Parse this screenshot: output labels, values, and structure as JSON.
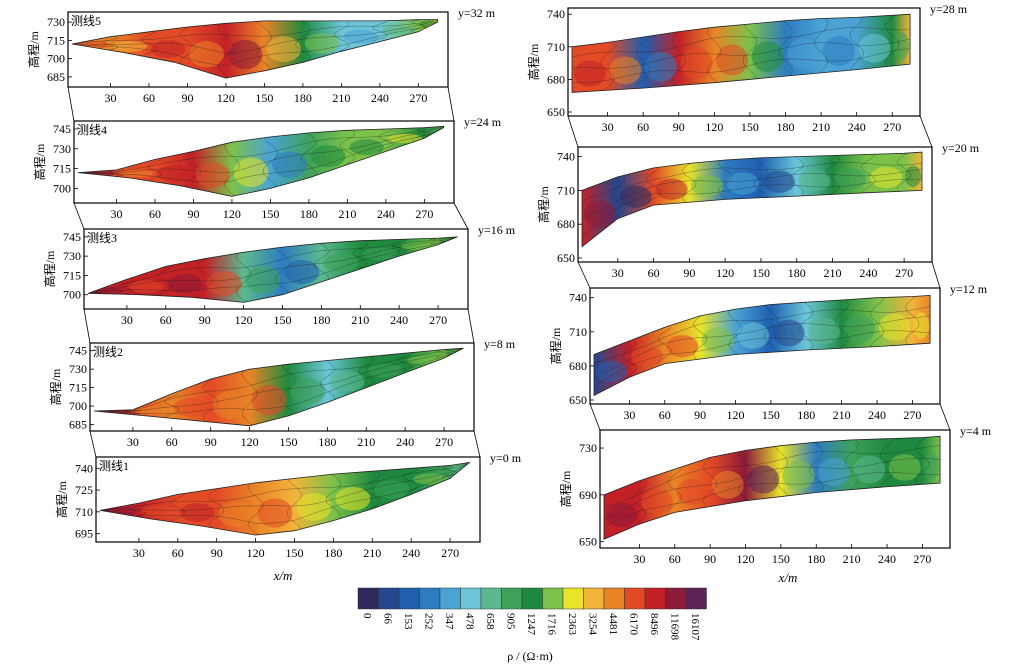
{
  "colorbar": {
    "ticks": [
      "0",
      "66",
      "153",
      "252",
      "347",
      "478",
      "658",
      "905",
      "1247",
      "1716",
      "2363",
      "3254",
      "4481",
      "6170",
      "8496",
      "11698",
      "16107"
    ],
    "colors": [
      "#2e2a5e",
      "#24478f",
      "#1f5fb0",
      "#2e7cc0",
      "#4aa3d4",
      "#6cc6d8",
      "#5cb98f",
      "#3fa15a",
      "#1f8a3f",
      "#7cc24a",
      "#e7e42a",
      "#f2b43a",
      "#e98427",
      "#e34a26",
      "#c42127",
      "#8c1a3a",
      "#5d2358"
    ],
    "label": "ρ / (Ω·m)"
  },
  "chart_data": [
    {
      "type": "heatmap",
      "name": "测线5",
      "y_label": "y=32 m",
      "ylabel": "高程/m",
      "x_ticks": [
        "30",
        "60",
        "90",
        "120",
        "150",
        "180",
        "210",
        "240",
        "270"
      ],
      "y_ticks": [
        "730",
        "715",
        "700",
        "685"
      ],
      "ylim": [
        680,
        735
      ],
      "xlim": [
        0,
        290
      ],
      "top": [
        [
          0,
          712
        ],
        [
          30,
          718
        ],
        [
          60,
          722
        ],
        [
          90,
          726
        ],
        [
          120,
          729
        ],
        [
          150,
          731
        ],
        [
          180,
          731
        ],
        [
          210,
          731
        ],
        [
          240,
          731
        ],
        [
          270,
          732
        ],
        [
          285,
          732
        ]
      ],
      "bottom": [
        [
          0,
          712
        ],
        [
          40,
          705
        ],
        [
          80,
          697
        ],
        [
          120,
          684
        ],
        [
          150,
          690
        ],
        [
          180,
          697
        ],
        [
          210,
          706
        ],
        [
          240,
          714
        ],
        [
          270,
          722
        ],
        [
          285,
          730
        ]
      ],
      "columns": [
        [
          0,
          12
        ],
        [
          30,
          12
        ],
        [
          60,
          13
        ],
        [
          90,
          13
        ],
        [
          120,
          14
        ],
        [
          150,
          12
        ],
        [
          180,
          8
        ],
        [
          210,
          5
        ],
        [
          240,
          5
        ],
        [
          270,
          9
        ],
        [
          285,
          10
        ]
      ]
    },
    {
      "type": "heatmap",
      "name": "测线4",
      "y_label": "y=24 m",
      "ylabel": "高程/m",
      "x_ticks": [
        "30",
        "60",
        "90",
        "120",
        "150",
        "180",
        "210",
        "240",
        "270"
      ],
      "y_ticks": [
        "745",
        "730",
        "715",
        "700"
      ],
      "ylim": [
        692,
        748
      ],
      "xlim": [
        0,
        290
      ],
      "top": [
        [
          0,
          712
        ],
        [
          30,
          714
        ],
        [
          60,
          722
        ],
        [
          90,
          728
        ],
        [
          120,
          735
        ],
        [
          150,
          739
        ],
        [
          180,
          742
        ],
        [
          210,
          744
        ],
        [
          240,
          745
        ],
        [
          270,
          746
        ],
        [
          285,
          747
        ]
      ],
      "bottom": [
        [
          0,
          712
        ],
        [
          40,
          708
        ],
        [
          80,
          702
        ],
        [
          120,
          694
        ],
        [
          150,
          700
        ],
        [
          180,
          708
        ],
        [
          210,
          718
        ],
        [
          240,
          728
        ],
        [
          270,
          738
        ],
        [
          285,
          746
        ]
      ],
      "columns": [
        [
          0,
          14
        ],
        [
          30,
          13
        ],
        [
          60,
          13
        ],
        [
          90,
          14
        ],
        [
          120,
          9
        ],
        [
          150,
          4
        ],
        [
          180,
          7
        ],
        [
          210,
          9
        ],
        [
          240,
          9
        ],
        [
          270,
          8
        ],
        [
          285,
          9
        ]
      ]
    },
    {
      "type": "heatmap",
      "name": "测线3",
      "y_label": "y=16 m",
      "ylabel": "高程/m",
      "x_ticks": [
        "30",
        "60",
        "90",
        "120",
        "150",
        "180",
        "210",
        "240",
        "270"
      ],
      "y_ticks": [
        "745",
        "730",
        "715",
        "700"
      ],
      "ylim": [
        692,
        748
      ],
      "xlim": [
        0,
        290
      ],
      "top": [
        [
          0,
          701
        ],
        [
          30,
          712
        ],
        [
          60,
          722
        ],
        [
          90,
          728
        ],
        [
          120,
          733
        ],
        [
          150,
          737
        ],
        [
          180,
          740
        ],
        [
          210,
          742
        ],
        [
          240,
          743
        ],
        [
          270,
          744
        ],
        [
          285,
          745
        ]
      ],
      "bottom": [
        [
          0,
          701
        ],
        [
          40,
          700
        ],
        [
          80,
          698
        ],
        [
          120,
          694
        ],
        [
          150,
          700
        ],
        [
          180,
          710
        ],
        [
          210,
          720
        ],
        [
          240,
          730
        ],
        [
          270,
          739
        ],
        [
          285,
          745
        ]
      ],
      "columns": [
        [
          0,
          14
        ],
        [
          30,
          14
        ],
        [
          60,
          14
        ],
        [
          90,
          14
        ],
        [
          120,
          6
        ],
        [
          150,
          3
        ],
        [
          180,
          6
        ],
        [
          210,
          8
        ],
        [
          240,
          8
        ],
        [
          270,
          9
        ],
        [
          285,
          9
        ]
      ]
    },
    {
      "type": "heatmap",
      "name": "测线2",
      "y_label": "y=8 m",
      "ylabel": "高程/m",
      "x_ticks": [
        "30",
        "60",
        "90",
        "120",
        "150",
        "180",
        "210",
        "240",
        "270"
      ],
      "y_ticks": [
        "745",
        "730",
        "715",
        "700",
        "685"
      ],
      "ylim": [
        683,
        748
      ],
      "xlim": [
        0,
        290
      ],
      "top": [
        [
          0,
          696
        ],
        [
          30,
          697
        ],
        [
          60,
          710
        ],
        [
          90,
          722
        ],
        [
          120,
          730
        ],
        [
          150,
          734
        ],
        [
          180,
          737
        ],
        [
          210,
          740
        ],
        [
          240,
          743
        ],
        [
          270,
          746
        ],
        [
          285,
          747
        ]
      ],
      "bottom": [
        [
          0,
          696
        ],
        [
          40,
          692
        ],
        [
          80,
          688
        ],
        [
          120,
          684
        ],
        [
          150,
          692
        ],
        [
          180,
          703
        ],
        [
          210,
          715
        ],
        [
          240,
          727
        ],
        [
          270,
          739
        ],
        [
          285,
          747
        ]
      ],
      "columns": [
        [
          0,
          14
        ],
        [
          30,
          13
        ],
        [
          60,
          12
        ],
        [
          90,
          13
        ],
        [
          120,
          12
        ],
        [
          150,
          8
        ],
        [
          180,
          5
        ],
        [
          210,
          8
        ],
        [
          240,
          8
        ],
        [
          270,
          9
        ],
        [
          285,
          9
        ]
      ]
    },
    {
      "type": "heatmap",
      "name": "测线1",
      "y_label": "y=0 m",
      "ylabel": "高程/m",
      "x_ticks": [
        "30",
        "60",
        "90",
        "120",
        "150",
        "180",
        "210",
        "240",
        "270"
      ],
      "y_ticks": [
        "740",
        "725",
        "710",
        "695"
      ],
      "ylim": [
        692,
        745
      ],
      "xlim": [
        0,
        290
      ],
      "top": [
        [
          0,
          711
        ],
        [
          30,
          716
        ],
        [
          60,
          722
        ],
        [
          90,
          726
        ],
        [
          120,
          730
        ],
        [
          150,
          733
        ],
        [
          180,
          736
        ],
        [
          210,
          738
        ],
        [
          240,
          740
        ],
        [
          270,
          742
        ],
        [
          285,
          744
        ]
      ],
      "bottom": [
        [
          0,
          711
        ],
        [
          40,
          705
        ],
        [
          80,
          700
        ],
        [
          120,
          694
        ],
        [
          150,
          697
        ],
        [
          180,
          704
        ],
        [
          210,
          712
        ],
        [
          240,
          722
        ],
        [
          270,
          733
        ],
        [
          285,
          744
        ]
      ],
      "columns": [
        [
          0,
          14
        ],
        [
          30,
          14
        ],
        [
          60,
          13
        ],
        [
          90,
          13
        ],
        [
          120,
          12
        ],
        [
          150,
          11
        ],
        [
          180,
          9
        ],
        [
          210,
          8
        ],
        [
          240,
          8
        ],
        [
          270,
          7
        ],
        [
          285,
          6
        ]
      ]
    },
    {
      "type": "heatmap",
      "name": "",
      "y_label": "y=28 m",
      "ylabel": "高程/m",
      "x_ticks": [
        "30",
        "60",
        "90",
        "120",
        "150",
        "180",
        "210",
        "240",
        "270"
      ],
      "y_ticks": [
        "740",
        "710",
        "680",
        "650"
      ],
      "ylim": [
        650,
        742
      ],
      "xlim": [
        0,
        290
      ],
      "top": [
        [
          0,
          710
        ],
        [
          30,
          714
        ],
        [
          60,
          719
        ],
        [
          90,
          724
        ],
        [
          120,
          728
        ],
        [
          150,
          731
        ],
        [
          180,
          734
        ],
        [
          210,
          736
        ],
        [
          240,
          737
        ],
        [
          270,
          739
        ],
        [
          285,
          740
        ]
      ],
      "bottom": [
        [
          0,
          668
        ],
        [
          60,
          672
        ],
        [
          120,
          677
        ],
        [
          180,
          683
        ],
        [
          240,
          689
        ],
        [
          285,
          694
        ]
      ],
      "columns": [
        [
          0,
          13
        ],
        [
          30,
          13
        ],
        [
          60,
          2
        ],
        [
          90,
          14
        ],
        [
          120,
          12
        ],
        [
          150,
          9
        ],
        [
          180,
          3
        ],
        [
          210,
          4
        ],
        [
          240,
          4
        ],
        [
          270,
          8
        ],
        [
          285,
          11
        ]
      ]
    },
    {
      "type": "heatmap",
      "name": "",
      "y_label": "y=20 m",
      "ylabel": "高程/m",
      "x_ticks": [
        "30",
        "60",
        "90",
        "120",
        "150",
        "180",
        "210",
        "240",
        "270"
      ],
      "y_ticks": [
        "740",
        "710",
        "680",
        "650"
      ],
      "ylim": [
        650,
        745
      ],
      "xlim": [
        0,
        290
      ],
      "top": [
        [
          0,
          710
        ],
        [
          30,
          722
        ],
        [
          60,
          730
        ],
        [
          90,
          734
        ],
        [
          120,
          737
        ],
        [
          150,
          739
        ],
        [
          180,
          740
        ],
        [
          210,
          741
        ],
        [
          240,
          742
        ],
        [
          270,
          743
        ],
        [
          285,
          744
        ]
      ],
      "bottom": [
        [
          0,
          660
        ],
        [
          30,
          685
        ],
        [
          60,
          697
        ],
        [
          120,
          702
        ],
        [
          180,
          705
        ],
        [
          240,
          708
        ],
        [
          285,
          710
        ]
      ],
      "columns": [
        [
          0,
          14
        ],
        [
          30,
          1
        ],
        [
          60,
          13
        ],
        [
          90,
          10
        ],
        [
          120,
          3
        ],
        [
          150,
          2
        ],
        [
          180,
          5
        ],
        [
          210,
          8
        ],
        [
          240,
          9
        ],
        [
          270,
          9
        ],
        [
          285,
          11
        ]
      ]
    },
    {
      "type": "heatmap",
      "name": "",
      "y_label": "y=12 m",
      "ylabel": "高程/m",
      "x_ticks": [
        "30",
        "60",
        "90",
        "120",
        "150",
        "180",
        "210",
        "240",
        "270"
      ],
      "y_ticks": [
        "740",
        "710",
        "680",
        "650"
      ],
      "ylim": [
        650,
        745
      ],
      "xlim": [
        0,
        290
      ],
      "top": [
        [
          0,
          690
        ],
        [
          30,
          702
        ],
        [
          60,
          714
        ],
        [
          90,
          724
        ],
        [
          120,
          730
        ],
        [
          150,
          734
        ],
        [
          180,
          736
        ],
        [
          210,
          738
        ],
        [
          240,
          740
        ],
        [
          270,
          741
        ],
        [
          285,
          742
        ]
      ],
      "bottom": [
        [
          0,
          654
        ],
        [
          30,
          670
        ],
        [
          60,
          682
        ],
        [
          120,
          690
        ],
        [
          180,
          694
        ],
        [
          240,
          697
        ],
        [
          285,
          700
        ]
      ],
      "columns": [
        [
          0,
          1
        ],
        [
          30,
          14
        ],
        [
          60,
          12
        ],
        [
          90,
          10
        ],
        [
          120,
          4
        ],
        [
          150,
          2
        ],
        [
          180,
          5
        ],
        [
          210,
          8
        ],
        [
          240,
          9
        ],
        [
          270,
          11
        ],
        [
          285,
          12
        ]
      ]
    },
    {
      "type": "heatmap",
      "name": "",
      "y_label": "y=4 m",
      "ylabel": "高程/m",
      "x_ticks": [
        "30",
        "60",
        "90",
        "120",
        "150",
        "180",
        "210",
        "240",
        "270"
      ],
      "y_ticks": [
        "730",
        "690",
        "650"
      ],
      "ylim": [
        648,
        742
      ],
      "xlim": [
        0,
        290
      ],
      "top": [
        [
          0,
          690
        ],
        [
          30,
          702
        ],
        [
          60,
          712
        ],
        [
          90,
          722
        ],
        [
          120,
          728
        ],
        [
          150,
          732
        ],
        [
          180,
          735
        ],
        [
          210,
          737
        ],
        [
          240,
          738
        ],
        [
          270,
          739
        ],
        [
          285,
          740
        ]
      ],
      "bottom": [
        [
          0,
          652
        ],
        [
          30,
          665
        ],
        [
          60,
          675
        ],
        [
          120,
          685
        ],
        [
          180,
          692
        ],
        [
          240,
          697
        ],
        [
          285,
          700
        ]
      ],
      "columns": [
        [
          0,
          14
        ],
        [
          30,
          14
        ],
        [
          60,
          12
        ],
        [
          90,
          13
        ],
        [
          120,
          15
        ],
        [
          150,
          10
        ],
        [
          180,
          3
        ],
        [
          210,
          7
        ],
        [
          240,
          8
        ],
        [
          270,
          8
        ],
        [
          285,
          9
        ]
      ]
    }
  ],
  "xlabel_left": "x/m",
  "xlabel_right": "x/m"
}
